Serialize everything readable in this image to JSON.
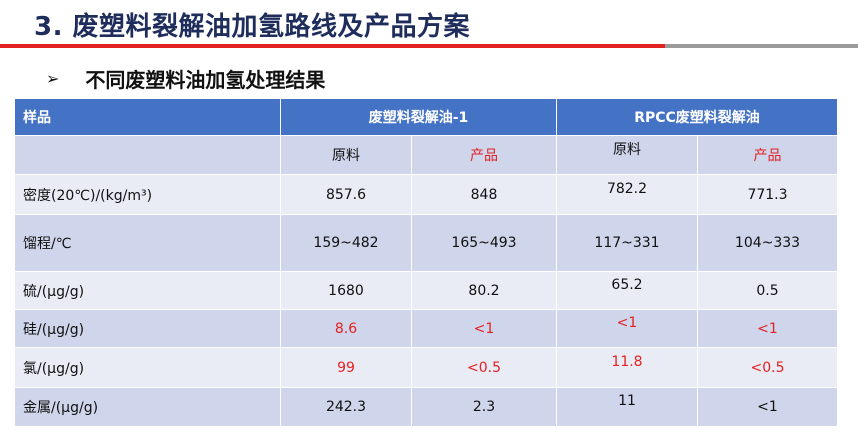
{
  "slide": {
    "title": "3. 废塑料裂解油加氢路线及产品方案",
    "subtitle": "不同废塑料油加氢处理结果",
    "bullet_icon": "arrow-right"
  },
  "colors": {
    "header_bg": "#4472c4",
    "row_dark": "#cfd5ea",
    "row_light": "#e9ebf5",
    "highlight": "#e32121",
    "title": "#1f2d5c"
  },
  "table": {
    "header": {
      "sample": "样品",
      "group1": "废塑料裂解油-1",
      "group2": "RPCC废塑料裂解油"
    },
    "subheader": {
      "raw1": "原料",
      "prod1": "产品",
      "raw2": "原料",
      "prod2": "产品"
    },
    "rows": [
      {
        "label": "密度(20℃)/(kg/m³)",
        "v1": "857.6",
        "v2": "848",
        "v3": "782.2",
        "v4": "771.3"
      },
      {
        "label": "馏程/℃",
        "v1": "159~482",
        "v2": "165~493",
        "v3": "117~331",
        "v4": "104~333"
      },
      {
        "label": "硫/(μg/g)",
        "v1": "1680",
        "v2": "80.2",
        "v3": "65.2",
        "v4": "0.5"
      },
      {
        "label": "硅/(μg/g)",
        "v1": "8.6",
        "v2": "<1",
        "v3": "<1",
        "v4": "<1"
      },
      {
        "label": "氯/(μg/g)",
        "v1": "99",
        "v2": "<0.5",
        "v3": "11.8",
        "v4": "<0.5"
      },
      {
        "label": "金属/(μg/g)",
        "v1": "242.3",
        "v2": "2.3",
        "v3": "11",
        "v4": "<1"
      }
    ]
  }
}
